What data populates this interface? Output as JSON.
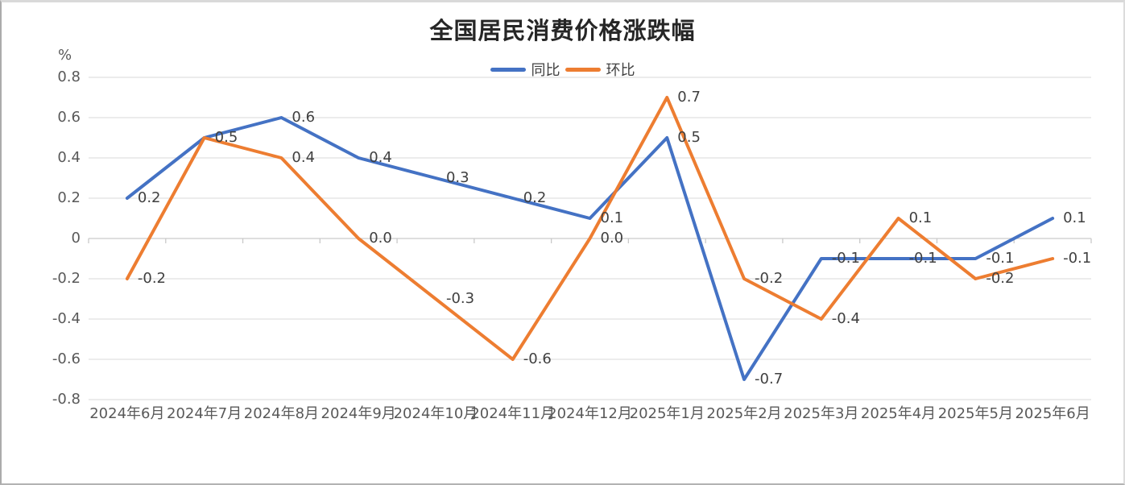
{
  "header": {
    "title": "全国居民消费价格涨跌幅",
    "unit_label": "%"
  },
  "legend": {
    "items": [
      {
        "label": "同比",
        "color": "#4472C4"
      },
      {
        "label": "环比",
        "color": "#ED7D31"
      }
    ]
  },
  "chart_data": {
    "type": "line",
    "title": "全国居民消费价格涨跌幅",
    "xlabel": "",
    "ylabel": "%",
    "ylim": [
      -0.8,
      0.8
    ],
    "ytick_step": 0.2,
    "ytick_labels": [
      "0.8",
      "0.6",
      "0.4",
      "0.2",
      "0",
      "-0.2",
      "-0.4",
      "-0.6",
      "-0.8"
    ],
    "grid": true,
    "legend_position": "top",
    "categories": [
      "2024年6月",
      "2024年7月",
      "2024年8月",
      "2024年9月",
      "2024年10月",
      "2024年11月",
      "2024年12月",
      "2025年1月",
      "2025年2月",
      "2025年3月",
      "2025年4月",
      "2025年5月",
      "2025年6月"
    ],
    "series": [
      {
        "name": "同比",
        "color": "#4472C4",
        "values": [
          0.2,
          0.5,
          0.6,
          0.4,
          0.3,
          0.2,
          0.1,
          0.5,
          -0.7,
          -0.1,
          -0.1,
          -0.1,
          0.1
        ],
        "point_labels": [
          "0.2",
          "0.5",
          "0.6",
          "0.4",
          "0.3",
          "0.2",
          "0.1",
          "0.5",
          "-0.7",
          "-0.1",
          "-0.1",
          "-0.1",
          "0.1"
        ]
      },
      {
        "name": "环比",
        "color": "#ED7D31",
        "values": [
          -0.2,
          0.5,
          0.4,
          0.0,
          -0.3,
          -0.6,
          0.0,
          0.7,
          -0.2,
          -0.4,
          0.1,
          -0.2,
          -0.1
        ],
        "point_labels": [
          "-0.2",
          "0.5",
          "0.4",
          "0.0",
          "-0.3",
          "-0.6",
          "0.0",
          "0.7",
          "-0.2",
          "-0.4",
          "0.1",
          "-0.2",
          "-0.1"
        ]
      }
    ],
    "colors": {
      "grid": "#D9D9D9",
      "axis": "#C9C9C9",
      "tick_label": "#595959",
      "data_label": "#404040",
      "title": "#262626"
    }
  }
}
